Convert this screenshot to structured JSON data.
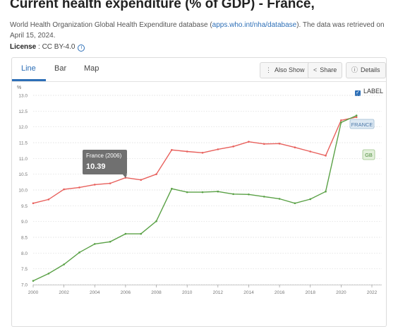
{
  "page": {
    "title": "Current health expenditure (% of GDP) - France,",
    "source_text": "World Health Organization Global Health Expenditure database (",
    "source_link": "apps.who.int/nha/database",
    "source_text_after": "). The data was retrieved on April 15, 2024.",
    "license_label": "License",
    "license_value": ": CC BY-4.0"
  },
  "tabs": [
    {
      "label": "Line",
      "active": true
    },
    {
      "label": "Bar",
      "active": false
    },
    {
      "label": "Map",
      "active": false
    }
  ],
  "toolbar": {
    "also_show": "Also Show",
    "share": "Share",
    "details": "Details"
  },
  "label_toggle": {
    "label": "LABEL",
    "checked": true
  },
  "tooltip": {
    "title": "France (2006)",
    "value": "10.39"
  },
  "end_labels": {
    "france": "FRANCE",
    "gb": "GB"
  },
  "colors": {
    "france": "#e8605c",
    "gb": "#5aa146",
    "accent": "#2d6fb7",
    "tooltip_bg": "#707070"
  },
  "chart_data": {
    "type": "line",
    "ylabel": "%",
    "ylim": [
      7.0,
      13.0
    ],
    "xlim": [
      2000,
      2022
    ],
    "yticks": [
      "7.0",
      "7.5",
      "8.0",
      "8.5",
      "9.0",
      "9.5",
      "10.0",
      "10.5",
      "11.0",
      "11.5",
      "12.0",
      "12.5",
      "13.0"
    ],
    "xticks": [
      "2000",
      "2002",
      "2004",
      "2006",
      "2008",
      "2010",
      "2012",
      "2014",
      "2016",
      "2018",
      "2020",
      "2022"
    ],
    "grid": true,
    "x": [
      2000,
      2001,
      2002,
      2003,
      2004,
      2005,
      2006,
      2007,
      2008,
      2009,
      2010,
      2011,
      2012,
      2013,
      2014,
      2015,
      2016,
      2017,
      2018,
      2019,
      2020,
      2021
    ],
    "series": [
      {
        "name": "France",
        "color": "#e8605c",
        "values": [
          9.58,
          9.7,
          10.02,
          10.08,
          10.17,
          10.21,
          10.39,
          10.32,
          10.5,
          11.27,
          11.22,
          11.18,
          11.29,
          11.38,
          11.53,
          11.46,
          11.47,
          11.35,
          11.22,
          11.09,
          12.21,
          12.31
        ]
      },
      {
        "name": "GB",
        "color": "#5aa146",
        "values": [
          7.12,
          7.35,
          7.64,
          8.02,
          8.29,
          8.36,
          8.61,
          8.61,
          9.01,
          10.04,
          9.93,
          9.93,
          9.95,
          9.87,
          9.86,
          9.79,
          9.72,
          9.58,
          9.71,
          9.95,
          12.14,
          12.36
        ]
      }
    ]
  }
}
